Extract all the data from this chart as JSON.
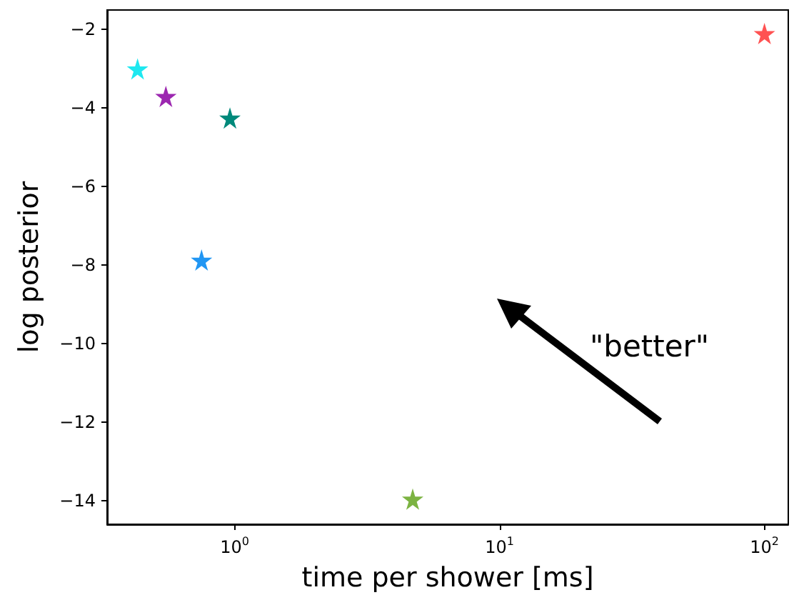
{
  "chart_data": {
    "type": "scatter",
    "xlabel": "time per shower [ms]",
    "ylabel": "log posterior",
    "log": "x",
    "x": [
      0.43,
      0.55,
      0.96,
      0.75,
      4.7,
      100
    ],
    "values": [
      -3.0,
      -3.7,
      -4.25,
      -7.87,
      -13.96,
      -2.1
    ],
    "colors": [
      "#1ee8f0",
      "#9c27b0",
      "#00897b",
      "#2196f3",
      "#7cb342",
      "#ff5252"
    ],
    "marker": "star",
    "xlim": [
      0.33,
      123
    ],
    "xticks": [
      {
        "value": 1,
        "label": "10$^{0}$"
      },
      {
        "value": 10,
        "label": "10$^{1}$"
      },
      {
        "value": 100,
        "label": "10$^{2}$"
      }
    ],
    "ylim": [
      -14.6,
      -1.5
    ],
    "yticks": [
      -14,
      -12,
      -10,
      -8,
      -6,
      -4,
      -2
    ],
    "annotations": [
      "\"better\""
    ]
  }
}
